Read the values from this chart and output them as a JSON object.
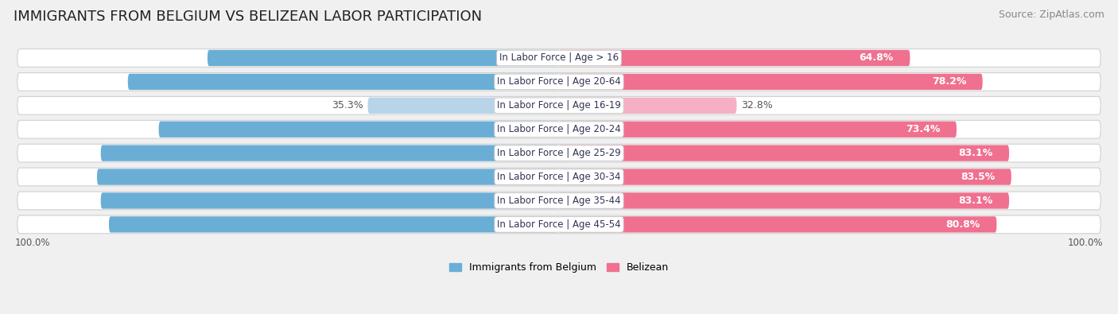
{
  "title": "IMMIGRANTS FROM BELGIUM VS BELIZEAN LABOR PARTICIPATION",
  "source": "Source: ZipAtlas.com",
  "categories": [
    "In Labor Force | Age > 16",
    "In Labor Force | Age 20-64",
    "In Labor Force | Age 16-19",
    "In Labor Force | Age 20-24",
    "In Labor Force | Age 25-29",
    "In Labor Force | Age 30-34",
    "In Labor Force | Age 35-44",
    "In Labor Force | Age 45-54"
  ],
  "belgium_values": [
    64.9,
    79.6,
    35.3,
    73.9,
    84.6,
    85.3,
    84.6,
    83.1
  ],
  "belizean_values": [
    64.8,
    78.2,
    32.8,
    73.4,
    83.1,
    83.5,
    83.1,
    80.8
  ],
  "belgium_color_strong": "#6aaed6",
  "belgium_color_weak": "#b8d4e8",
  "belizean_color_strong": "#f07090",
  "belizean_color_weak": "#f5b0c5",
  "bg_color": "#f0f0f0",
  "row_bg_color": "#e8e8e8",
  "row_border_color": "#d0d0d0",
  "axis_label_left": "100.0%",
  "axis_label_right": "100.0%",
  "max_value": 100.0,
  "legend_belgium": "Immigrants from Belgium",
  "legend_belizean": "Belizean",
  "title_fontsize": 13,
  "source_fontsize": 9,
  "bar_label_fontsize": 9,
  "category_fontsize": 8.5,
  "weak_threshold": 50
}
